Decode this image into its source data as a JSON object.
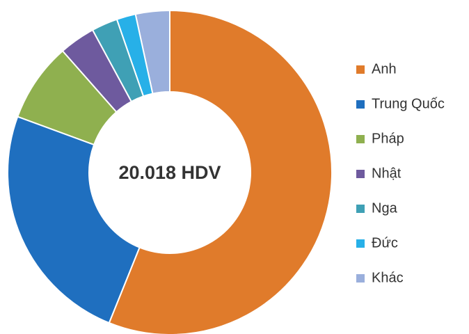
{
  "chart_data": {
    "type": "donut",
    "center_label": "20.018 HDV",
    "categories": [
      "Anh",
      "Trung Quốc",
      "Pháp",
      "Nhật",
      "Nga",
      "Đức",
      "Khác"
    ],
    "values": [
      56.1,
      24.5,
      7.9,
      3.6,
      2.6,
      1.9,
      3.4
    ],
    "colors": [
      "#e07b2b",
      "#1f6fbf",
      "#8fb04f",
      "#6e5a9e",
      "#3fa0b5",
      "#27b0e8",
      "#9aafdc"
    ],
    "legend": "right"
  }
}
